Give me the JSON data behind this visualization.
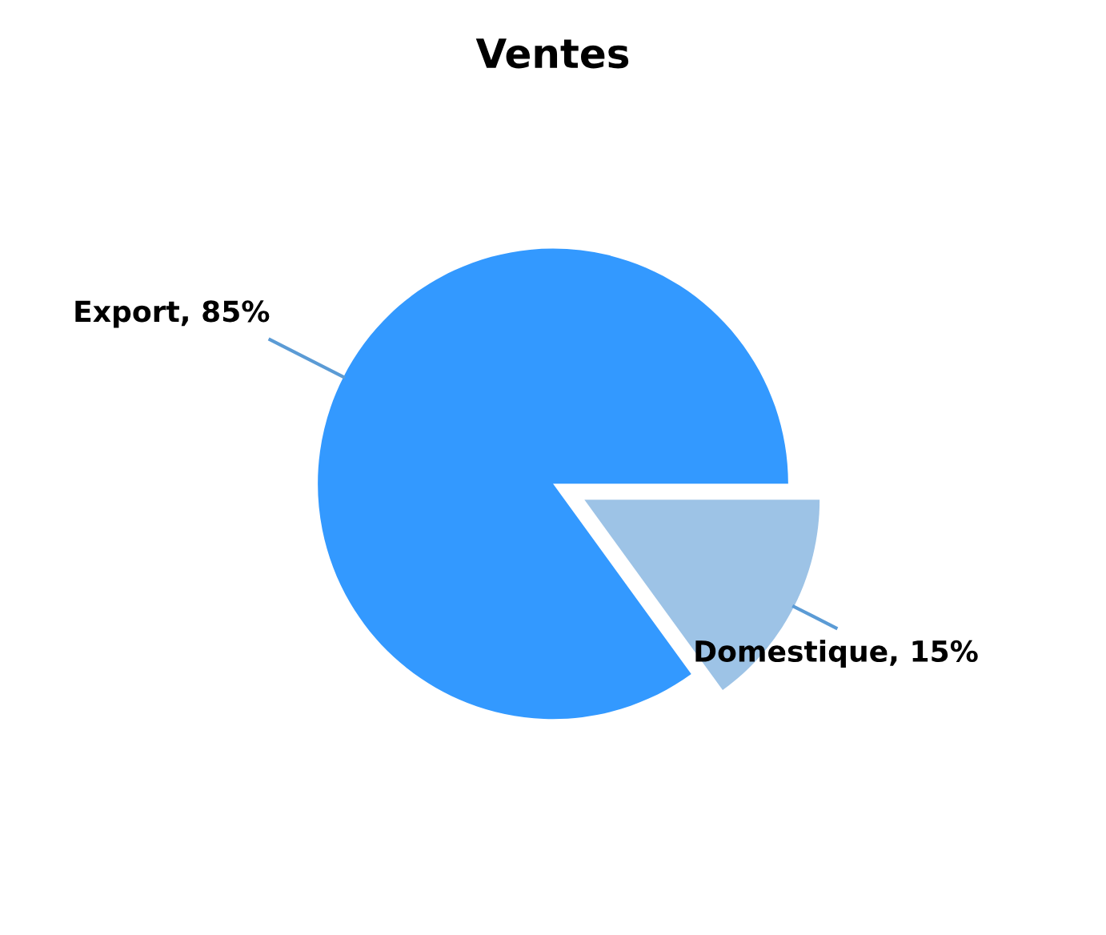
{
  "chart_data": {
    "type": "pie",
    "title": "Ventes",
    "categories": [
      "Export",
      "Domestique"
    ],
    "values": [
      85,
      15
    ],
    "colors": [
      "#3399ff",
      "#9dc3e6"
    ],
    "value_labels": [
      "85%",
      "15%"
    ]
  }
}
